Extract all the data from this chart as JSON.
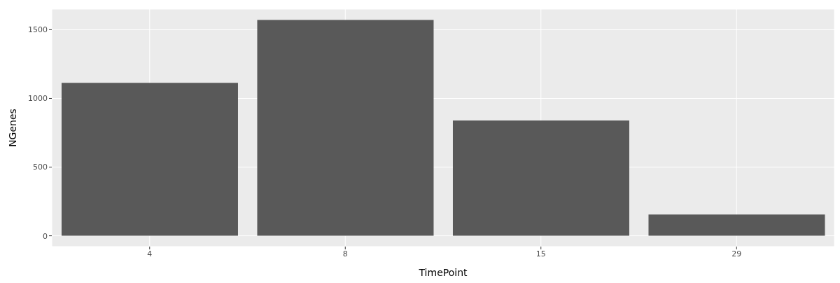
{
  "chart_data": {
    "type": "bar",
    "xlabel": "TimePoint",
    "ylabel": "NGenes",
    "categories": [
      "4",
      "8",
      "15",
      "29"
    ],
    "values": [
      1113,
      1571,
      839,
      155
    ],
    "color": "#595959",
    "ylim": [
      -78.5,
      1650
    ],
    "yticks": [
      0,
      500,
      1000,
      1500
    ],
    "grid": true
  }
}
